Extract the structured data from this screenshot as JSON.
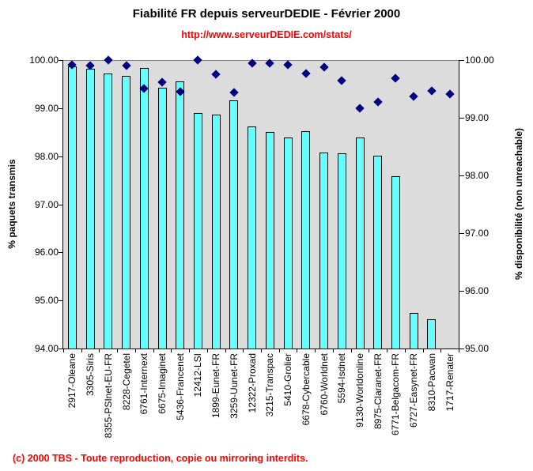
{
  "page": {
    "footer": "(c) 2000 TBS - Toute reproduction, copie ou mirroring interdits."
  },
  "colors": {
    "bar_fill": "#66FFFF",
    "bar_border": "#000000",
    "marker_fill": "#000080",
    "plot_background": "#DCDCDC",
    "gridline": "#808080",
    "axis_line": "#000000",
    "accent_red": "#FF0000",
    "title_color": "#000000"
  },
  "chart_data": {
    "type": "bar+scatter",
    "title": "Fiabilité FR depuis serveurDEDIE - Février 2000",
    "subtitle": "http://www.serveurDEDIE.com/stats/",
    "grid": "top-line-only",
    "legend": "none",
    "categories": [
      "2917-Oleane",
      "3305-Siris",
      "8355-PSInet-EU-FR",
      "8228-Cegetel",
      "6761-Internext",
      "6675-Imaginet",
      "5436-Francenet",
      "12412-LSI",
      "1899-Eunet-FR",
      "3259-Uunet-FR",
      "12322-Proxad",
      "3215-Transpac",
      "5410-Grolier",
      "6678-Cybercable",
      "6760-Worldnet",
      "5594-Isdnet",
      "9130-Worldonline",
      "8975-Claranet-FR",
      "6771-Belgacom-FR",
      "6727-Easynet-FR",
      "8310-Pacwan",
      "1717-Renater"
    ],
    "series": [
      {
        "name": "% paquets transmis",
        "type": "bar",
        "axis": "left",
        "values": [
          99.88,
          99.84,
          99.73,
          99.69,
          99.85,
          99.45,
          99.57,
          98.92,
          98.88,
          99.18,
          98.63,
          98.52,
          98.41,
          98.54,
          98.09,
          98.08,
          98.4,
          98.03,
          97.6,
          94.75,
          94.62,
          null
        ]
      },
      {
        "name": "% disponibilité (non unreachable)",
        "type": "scatter",
        "marker": "diamond",
        "axis": "right",
        "values": [
          99.92,
          99.91,
          100.0,
          99.91,
          99.51,
          99.61,
          99.45,
          100.0,
          99.75,
          99.44,
          99.95,
          99.95,
          99.92,
          99.77,
          99.88,
          99.65,
          99.16,
          99.27,
          99.68,
          99.37,
          99.46,
          99.41
        ]
      }
    ],
    "left_axis": {
      "label": "% paquets transmis",
      "min": 94,
      "max": 100,
      "tick_labels": [
        "100.00",
        "99.00",
        "98.00",
        "97.00",
        "96.00",
        "95.00",
        "94.00"
      ]
    },
    "right_axis": {
      "label": "% disponibilité (non unreachable)",
      "min": 95,
      "max": 100,
      "tick_labels": [
        "100.00",
        "99.00",
        "98.00",
        "97.00",
        "96.00",
        "95.00"
      ]
    }
  }
}
